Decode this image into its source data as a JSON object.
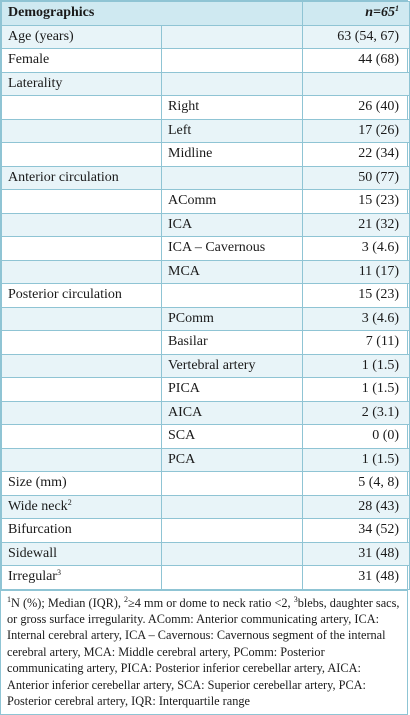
{
  "header": {
    "col1": "Demographics",
    "col3": "n=65",
    "col3_sup": "1"
  },
  "rows": [
    {
      "c1": "Age (years)",
      "c2": "",
      "c3": "63 (54, 67)",
      "shade": true
    },
    {
      "c1": "Female",
      "c2": "",
      "c3": "44 (68)",
      "shade": false
    },
    {
      "c1": "Laterality",
      "c2": "",
      "c3": "",
      "shade": true
    },
    {
      "c1": "",
      "c2": "Right",
      "c3": "26 (40)",
      "shade": false
    },
    {
      "c1": "",
      "c2": "Left",
      "c3": "17 (26)",
      "shade": true
    },
    {
      "c1": "",
      "c2": "Midline",
      "c3": "22 (34)",
      "shade": false
    },
    {
      "c1": "Anterior circulation",
      "c2": "",
      "c3": "50 (77)",
      "shade": true
    },
    {
      "c1": "",
      "c2": "AComm",
      "c3": "15 (23)",
      "shade": false
    },
    {
      "c1": "",
      "c2": "ICA",
      "c3": "21 (32)",
      "shade": true
    },
    {
      "c1": "",
      "c2": "ICA – Cavernous",
      "c3": "3 (4.6)",
      "shade": false
    },
    {
      "c1": "",
      "c2": "MCA",
      "c3": "11 (17)",
      "shade": true
    },
    {
      "c1": "Posterior circulation",
      "c2": "",
      "c3": "15 (23)",
      "shade": false
    },
    {
      "c1": "",
      "c2": "PComm",
      "c3": "3 (4.6)",
      "shade": true
    },
    {
      "c1": "",
      "c2": "Basilar",
      "c3": "7 (11)",
      "shade": false
    },
    {
      "c1": "",
      "c2": "Vertebral artery",
      "c3": "1 (1.5)",
      "shade": true
    },
    {
      "c1": "",
      "c2": "PICA",
      "c3": "1 (1.5)",
      "shade": false
    },
    {
      "c1": "",
      "c2": "AICA",
      "c3": "2 (3.1)",
      "shade": true
    },
    {
      "c1": "",
      "c2": "SCA",
      "c3": "0 (0)",
      "shade": false
    },
    {
      "c1": "",
      "c2": "PCA",
      "c3": "1 (1.5)",
      "shade": true
    },
    {
      "c1": "Size (mm)",
      "c2": "",
      "c3": "5 (4, 8)",
      "shade": false
    },
    {
      "c1": "Wide neck",
      "sup": "2",
      "c2": "",
      "c3": "28 (43)",
      "shade": true
    },
    {
      "c1": "Bifurcation",
      "c2": "",
      "c3": "34 (52)",
      "shade": false
    },
    {
      "c1": "Sidewall",
      "c2": "",
      "c3": "31 (48)",
      "shade": true
    },
    {
      "c1": "Irregular",
      "sup": "3",
      "c2": "",
      "c3": "31 (48)",
      "shade": false
    }
  ],
  "footnote": {
    "sup1": "1",
    "part1": "N (%); Median (IQR), ",
    "sup2": "2",
    "part2": "≥4 mm or dome to neck ratio <2, ",
    "sup3": "3",
    "part3": "blebs, daughter sacs, or gross surface irregularity. AComm: Anterior communicating artery, ICA: Internal cerebral artery, ICA – Cavernous: Cavernous segment of the internal cerebral artery, MCA: Middle cerebral artery, PComm: Posterior communicating artery, PICA: Posterior inferior cerebellar artery, AICA: Anterior inferior cerebellar artery, SCA: Superior cerebellar artery, PCA: Posterior cerebral artery, IQR: Interquartile range"
  }
}
